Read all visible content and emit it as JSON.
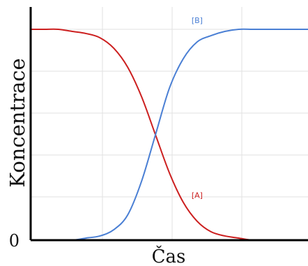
{
  "chart_data": {
    "type": "line",
    "xlabel": "Čas",
    "ylabel": "Koncentrace",
    "xlim": [
      0,
      10
    ],
    "ylim": [
      0,
      1
    ],
    "y_ticks": [
      "0"
    ],
    "grid": true,
    "legend": "inline labels on curves",
    "series": [
      {
        "name": "[A]",
        "color": "#cc1f1f",
        "x": [
          0,
          0.5,
          1,
          1.5,
          2,
          2.5,
          3,
          3.5,
          4,
          4.5,
          5,
          5.5,
          6,
          6.5,
          7,
          7.5,
          8,
          8.5,
          9,
          9.5,
          10
        ],
        "y": [
          1.0,
          1.0,
          1.0,
          0.99,
          0.98,
          0.96,
          0.91,
          0.82,
          0.68,
          0.5,
          0.32,
          0.18,
          0.09,
          0.04,
          0.02,
          0.01,
          0.0,
          0.0,
          0.0,
          0.0,
          0.0
        ]
      },
      {
        "name": "[B]",
        "color": "#4a7fd4",
        "x": [
          0,
          0.5,
          1,
          1.5,
          2,
          2.5,
          3,
          3.5,
          4,
          4.5,
          5,
          5.5,
          6,
          6.5,
          7,
          7.5,
          8,
          8.5,
          9,
          9.5,
          10
        ],
        "y": [
          0.0,
          0.0,
          0.0,
          0.0,
          0.01,
          0.02,
          0.05,
          0.12,
          0.28,
          0.5,
          0.72,
          0.86,
          0.94,
          0.97,
          0.99,
          1.0,
          1.0,
          1.0,
          1.0,
          1.0,
          1.0
        ]
      }
    ]
  }
}
